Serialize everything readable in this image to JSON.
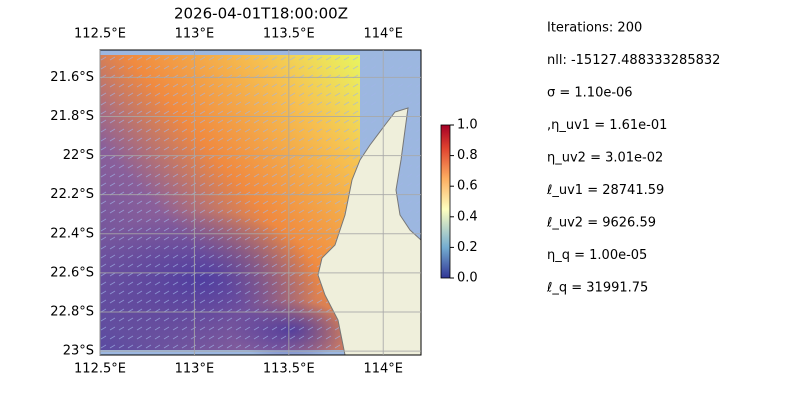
{
  "map": {
    "title": "2026-04-01T18:00:00Z",
    "xlim": [
      112.5,
      114.2
    ],
    "ylim": [
      -23.02,
      -21.46
    ],
    "xticks": [
      {
        "value": 112.5,
        "label": "112.5°E"
      },
      {
        "value": 113,
        "label": "113°E"
      },
      {
        "value": 113.5,
        "label": "113.5°E"
      },
      {
        "value": 114,
        "label": "114°E"
      }
    ],
    "yticks": [
      {
        "value": -21.6,
        "label": "21.6°S"
      },
      {
        "value": -21.8,
        "label": "21.8°S"
      },
      {
        "value": -22,
        "label": "22°S"
      },
      {
        "value": -22.2,
        "label": "22.2°S"
      },
      {
        "value": -22.4,
        "label": "22.4°S"
      },
      {
        "value": -22.6,
        "label": "22.6°S"
      },
      {
        "value": -22.8,
        "label": "22.8°S"
      },
      {
        "value": -23,
        "label": "23°S"
      }
    ],
    "grid": true
  },
  "colorbar": {
    "lim": [
      0,
      1
    ],
    "ticks": [
      {
        "value": 0,
        "label": "0.0"
      },
      0.2,
      0.4,
      0.6,
      0.8,
      {
        "value": 1,
        "label": "1.0"
      }
    ]
  },
  "annotations": [
    "Iterations: 200",
    "nll: -15127.488333285832",
    "σ = 1.10e-06",
    ",η_uv1 = 1.61e-01",
    "η_uv2 = 3.01e-02",
    "ℓ_uv1 = 28741.59",
    "ℓ_uv2 = 9626.59",
    "η_q = 1.00e-05",
    "ℓ_q = 31991.75"
  ]
}
